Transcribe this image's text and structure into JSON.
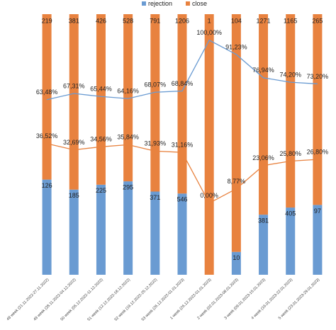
{
  "chart_data": {
    "type": "bar",
    "stacked": true,
    "normalized": true,
    "categories": [
      "48 week (21.11.2022-27.11.2022)",
      "49 week (28.11.2022-04.12.2022)",
      "50 week (05.12.2022-11.12.2022)",
      "51 week (12.12.2022-18.12.2022)",
      "52 week (19.12.2022-25.12.2022)",
      "53 week (26.12.2022-01.01.2023)",
      "1 week (26.12.2022-01.01.2023)",
      "2 week (02.01.2023-08.01.2023)",
      "3 week (09.01.2023-15.01.2023)",
      "4 week (16.01.2023-22.01.2023)",
      "5 week (23.01.2023-29.01.2023)"
    ],
    "series": [
      {
        "name": "rejection",
        "color": "#6a9bd2",
        "values": [
          126,
          185,
          225,
          295,
          371,
          546,
          0,
          10,
          381,
          405,
          97
        ],
        "value_labels": [
          "126",
          "185",
          "225",
          "295",
          "371",
          "546",
          null,
          "10",
          "381",
          "405",
          "97"
        ]
      },
      {
        "name": "close",
        "color": "#e8823f",
        "values": [
          219,
          381,
          426,
          528,
          791,
          1206,
          1,
          104,
          1271,
          1165,
          265
        ]
      }
    ],
    "lines": [
      {
        "color": "#6a9bd2",
        "axis": "y2",
        "values": [
          63.48,
          67.31,
          65.44,
          64.16,
          68.07,
          68.84,
          100,
          91.23,
          76.94,
          74.2,
          73.2
        ],
        "value_labels": [
          "63,48%",
          "67,31%",
          "65,44%",
          "64,16%",
          "68,07%",
          "68,84%",
          "100,00%",
          "91,23%",
          "76,94%",
          "74,20%",
          "73,20%"
        ]
      },
      {
        "color": "#e8823f",
        "axis": "y2",
        "values": [
          36.52,
          32.69,
          34.56,
          35.84,
          31.93,
          31.16,
          0,
          8.77,
          23.06,
          25.8,
          26.8
        ],
        "value_labels": [
          "36,52%",
          "32,69%",
          "34,56%",
          "35,84%",
          "31,93%",
          "31,16%",
          "0,00%",
          "8,77%",
          "23,06%",
          "25,80%",
          "26,80%"
        ]
      }
    ],
    "y2lim": [
      -44,
      116
    ],
    "legend": "top"
  }
}
